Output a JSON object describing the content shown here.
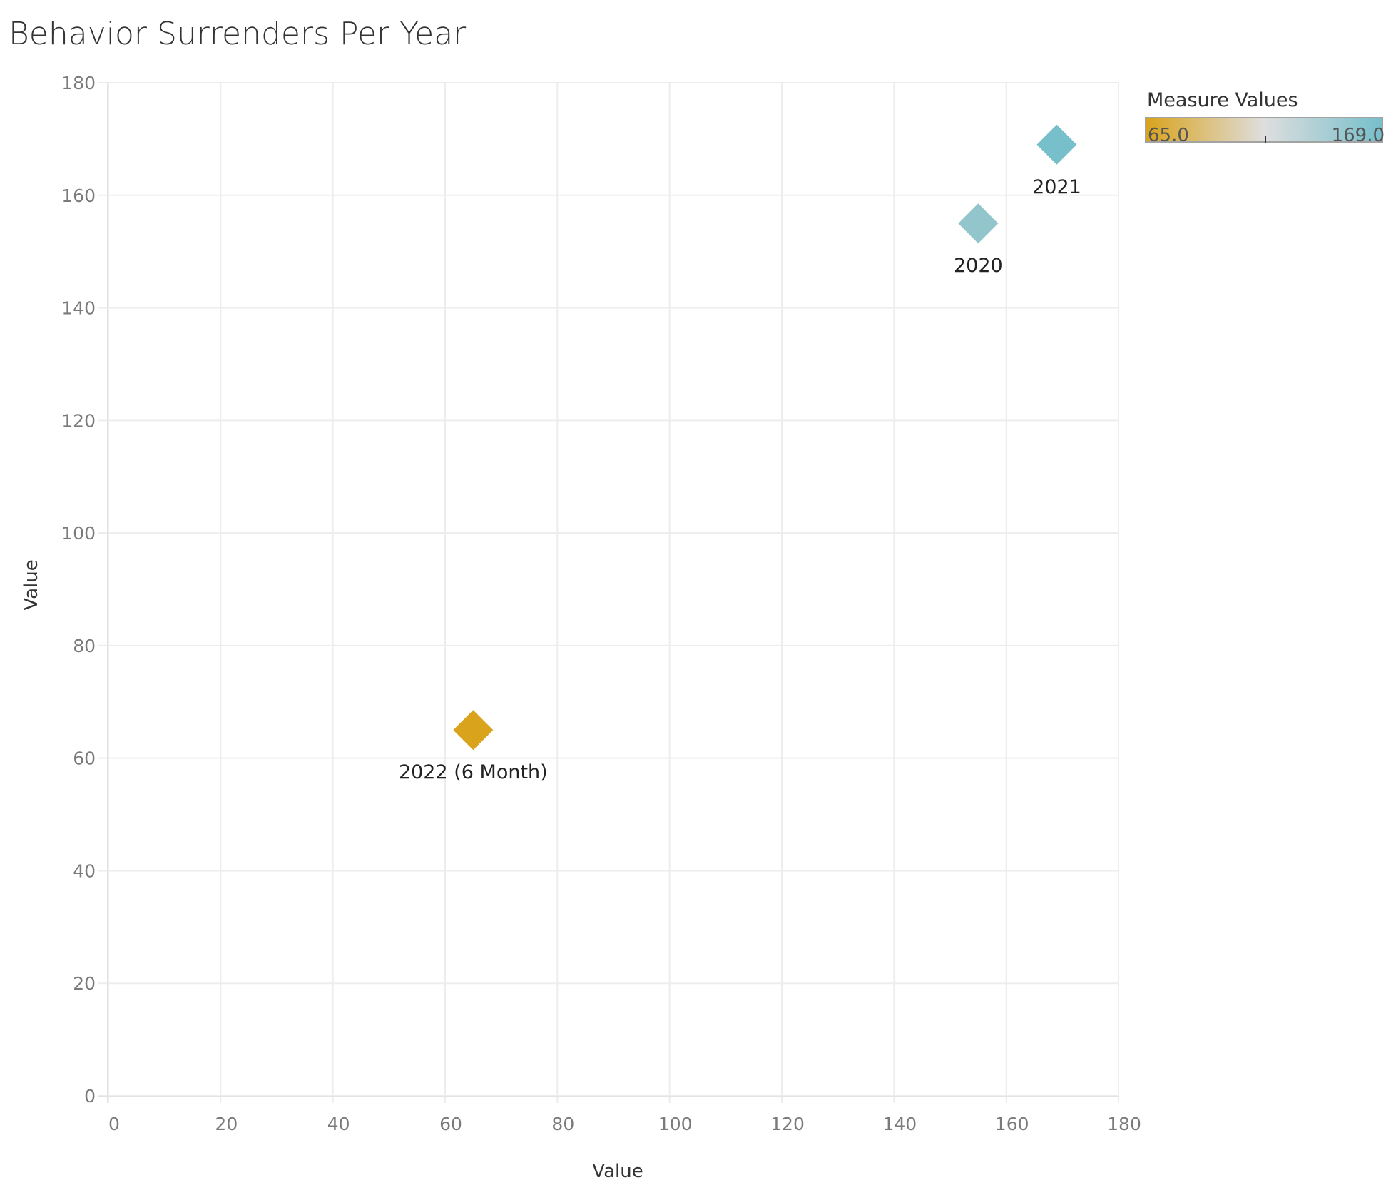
{
  "chart_data": {
    "type": "scatter",
    "title": "Behavior Surrenders Per Year",
    "xlabel": "Value",
    "ylabel": "Value",
    "xlim": [
      0,
      180
    ],
    "ylim": [
      0,
      180
    ],
    "x_ticks": [
      0,
      20,
      40,
      60,
      80,
      100,
      120,
      140,
      160,
      180
    ],
    "y_ticks": [
      0,
      20,
      40,
      60,
      80,
      100,
      120,
      140,
      160,
      180
    ],
    "grid": true,
    "marker": "diamond",
    "points": [
      {
        "label": "2020",
        "x": 155,
        "y": 155,
        "color": "#93c6cc"
      },
      {
        "label": "2021",
        "x": 169,
        "y": 169,
        "color": "#76bfcb"
      },
      {
        "label": "2022 (6 Month)",
        "x": 65,
        "y": 65,
        "color": "#d9a31c"
      }
    ],
    "legend": {
      "title": "Measure Values",
      "placement": "top-right",
      "min_label": "65.0",
      "max_label": "169.0",
      "gradient": [
        "#d9a31c",
        "#dedede",
        "#76bfcb"
      ]
    }
  }
}
